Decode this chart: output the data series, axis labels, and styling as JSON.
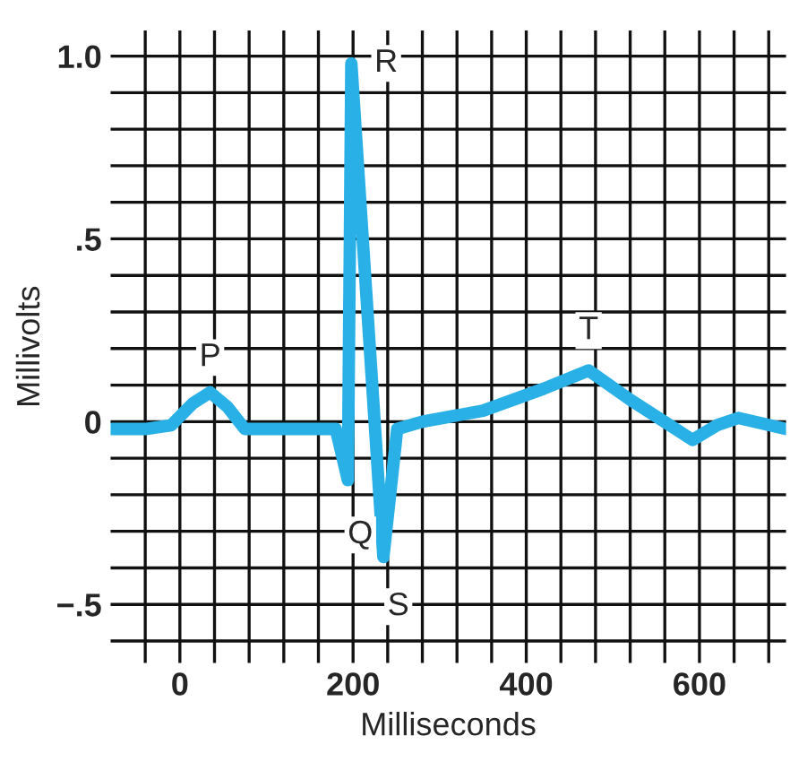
{
  "chart_data": {
    "type": "line",
    "xlabel": "Milliseconds",
    "ylabel": "Millivolts",
    "x": [
      -80,
      -40,
      -10,
      15,
      35,
      55,
      75,
      180,
      194,
      198,
      235,
      251,
      280,
      350,
      420,
      472,
      520,
      592,
      620,
      645,
      700
    ],
    "series": [
      {
        "color": "#29b0e6",
        "values": [
          -0.02,
          -0.02,
          -0.01,
          0.05,
          0.08,
          0.04,
          -0.02,
          -0.02,
          -0.16,
          0.98,
          -0.37,
          -0.02,
          0.0,
          0.03,
          0.09,
          0.14,
          0.06,
          -0.05,
          -0.01,
          0.01,
          -0.02
        ]
      }
    ],
    "xlim": [
      -80,
      700
    ],
    "ylim": [
      -0.66,
      1.07
    ],
    "xticks": [
      {
        "value": -40,
        "label": null
      },
      {
        "value": 0,
        "label": "0"
      },
      {
        "value": 40,
        "label": null
      },
      {
        "value": 80,
        "label": null
      },
      {
        "value": 120,
        "label": null
      },
      {
        "value": 160,
        "label": null
      },
      {
        "value": 200,
        "label": "200"
      },
      {
        "value": 240,
        "label": null
      },
      {
        "value": 280,
        "label": null
      },
      {
        "value": 320,
        "label": null
      },
      {
        "value": 360,
        "label": null
      },
      {
        "value": 400,
        "label": "400"
      },
      {
        "value": 440,
        "label": null
      },
      {
        "value": 480,
        "label": null
      },
      {
        "value": 520,
        "label": null
      },
      {
        "value": 560,
        "label": null
      },
      {
        "value": 600,
        "label": "600"
      },
      {
        "value": 640,
        "label": null
      },
      {
        "value": 680,
        "label": null
      }
    ],
    "yticks": [
      {
        "value": -0.6,
        "label": null
      },
      {
        "value": -0.5,
        "label": "−.5"
      },
      {
        "value": -0.4,
        "label": null
      },
      {
        "value": -0.3,
        "label": null
      },
      {
        "value": -0.2,
        "label": null
      },
      {
        "value": -0.1,
        "label": null
      },
      {
        "value": 0,
        "label": "0"
      },
      {
        "value": 0.1,
        "label": null
      },
      {
        "value": 0.2,
        "label": null
      },
      {
        "value": 0.3,
        "label": null
      },
      {
        "value": 0.4,
        "label": null
      },
      {
        "value": 0.5,
        "label": ".5"
      },
      {
        "value": 0.6,
        "label": null
      },
      {
        "value": 0.7,
        "label": null
      },
      {
        "value": 0.8,
        "label": null
      },
      {
        "value": 0.9,
        "label": null
      },
      {
        "value": 1.0,
        "label": "1.0"
      }
    ],
    "grid": true,
    "marker": "none",
    "line_style": "solid",
    "annotations": [
      {
        "text": "P",
        "x": 35,
        "y": 0.08
      },
      {
        "text": "Q",
        "x": 194,
        "y": -0.16
      },
      {
        "text": "R",
        "x": 198,
        "y": 0.98
      },
      {
        "text": "S",
        "x": 235,
        "y": -0.37
      },
      {
        "text": "T",
        "x": 472,
        "y": 0.14
      }
    ]
  }
}
